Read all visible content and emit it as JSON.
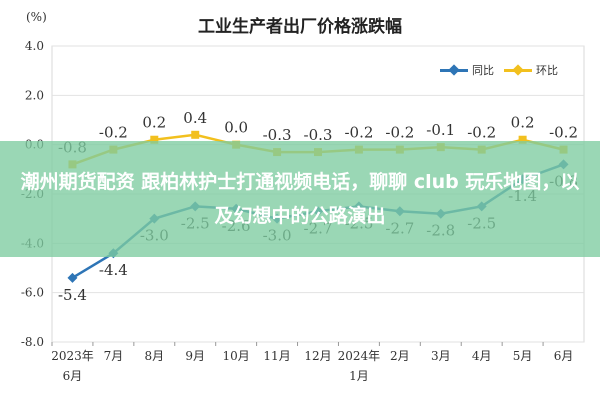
{
  "chart_data": {
    "type": "line",
    "title": "工业生产者出厂价格涨跌幅",
    "unit": "(%)",
    "ylim": [
      -8.0,
      4.0
    ],
    "yticks": [
      "4.0",
      "2.0",
      "0.0",
      "-2.0",
      "-4.0",
      "-6.0",
      "-8.0"
    ],
    "categories": [
      [
        "2023年",
        "6月"
      ],
      [
        "7月"
      ],
      [
        "8月"
      ],
      [
        "9月"
      ],
      [
        "10月"
      ],
      [
        "11月"
      ],
      [
        "12月"
      ],
      [
        "2024年",
        "1月"
      ],
      [
        "2月"
      ],
      [
        "3月"
      ],
      [
        "4月"
      ],
      [
        "5月"
      ],
      [
        "6月"
      ]
    ],
    "series": [
      {
        "name": "同比",
        "color": "#2e75b6",
        "values": [
          -5.4,
          -4.4,
          -3.0,
          -2.5,
          -2.6,
          -3.0,
          -2.7,
          -2.5,
          -2.7,
          -2.8,
          -2.5,
          -1.4,
          -0.8
        ],
        "labels": [
          "-5.4",
          "-4.4",
          "-3.0",
          "-2.5",
          "-2.6",
          "-3.0",
          "-2.7",
          "-2.5",
          "-2.7",
          "-2.8",
          "-2.5",
          "-1.4",
          "-0.8"
        ]
      },
      {
        "name": "环比",
        "color": "#f2c01e",
        "values": [
          -0.8,
          -0.2,
          0.2,
          0.4,
          0.0,
          -0.3,
          -0.3,
          -0.2,
          -0.2,
          -0.1,
          -0.2,
          0.2,
          -0.2
        ],
        "labels": [
          "-0.8",
          "-0.2",
          "0.2",
          "0.4",
          "0.0",
          "-0.3",
          "-0.3",
          "-0.2",
          "-0.2",
          "-0.1",
          "-0.2",
          "0.2",
          "-0.2"
        ]
      }
    ],
    "legend": "top-right",
    "grid": true
  },
  "overlay": {
    "text": "潮州期货配资 跟柏林护士打通视频电话，聊聊 club 玩乐地图，以及幻想中的公路演出"
  }
}
